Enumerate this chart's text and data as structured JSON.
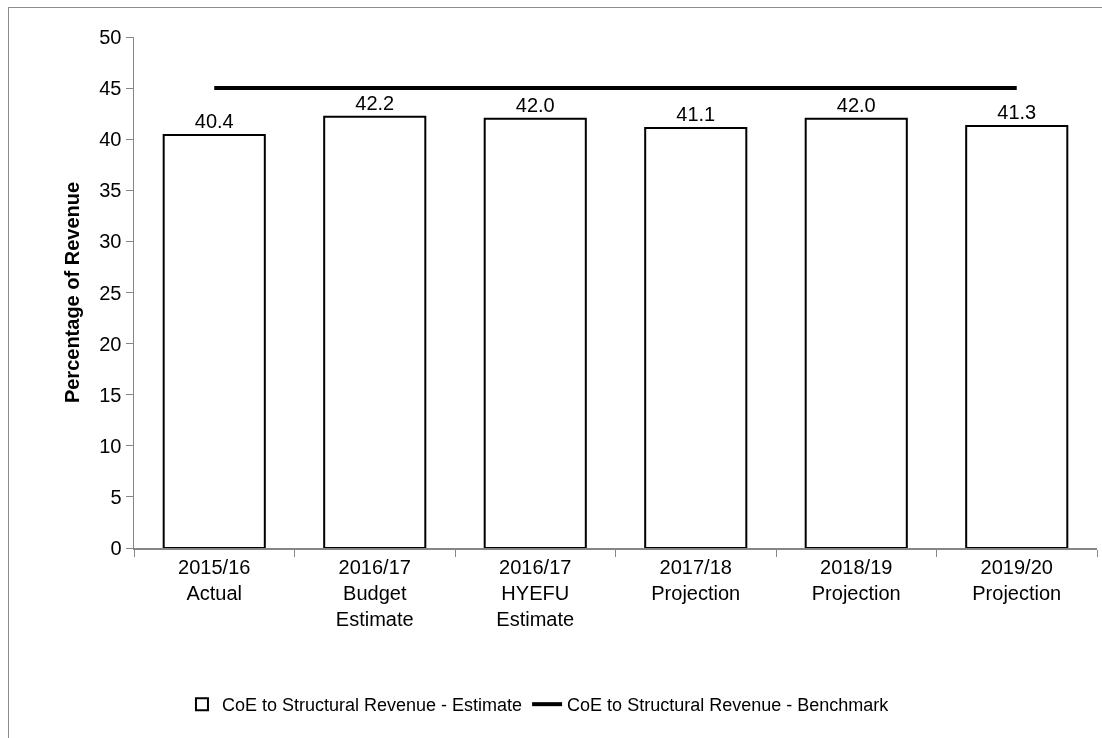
{
  "chart_data": {
    "type": "bar",
    "ylabel": "Percentage of Revenue",
    "categories": [
      "2015/16 Actual",
      "2016/17 Budget Estimate",
      "2016/17 HYEFU Estimate",
      "2017/18 Projection",
      "2018/19 Projection",
      "2019/20 Projection"
    ],
    "series": [
      {
        "name": "CoE to Structural Revenue - Estimate",
        "color": "#ffffff",
        "values": [
          40.4,
          42.2,
          42.0,
          41.1,
          42.0,
          41.3
        ],
        "value_labels": [
          "40.4",
          "42.2",
          "42.0",
          "41.1",
          "42.0",
          "41.3"
        ]
      },
      {
        "type": "line",
        "name": "CoE to Structural Revenue - Benchmark",
        "color": "#000000",
        "values": [
          45,
          45,
          45,
          45,
          45,
          45
        ]
      }
    ],
    "ylim": [
      0,
      50
    ],
    "yticks": [
      0,
      5,
      10,
      15,
      20,
      25,
      30,
      35,
      40,
      45,
      50
    ],
    "grid": false,
    "legend": "bottom"
  }
}
